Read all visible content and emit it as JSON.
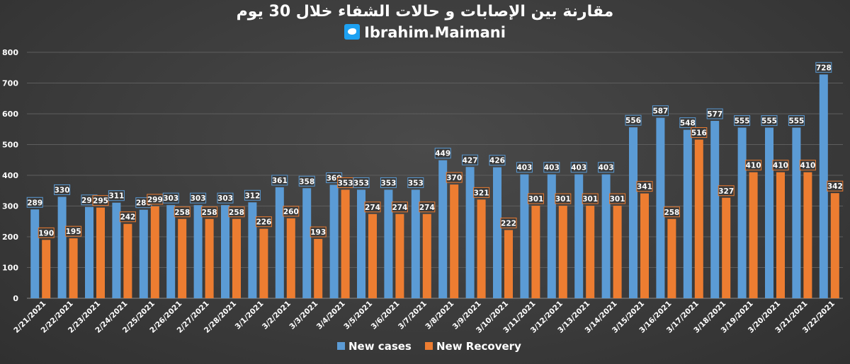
{
  "title": "مقارنة بين الإصابات و حالات الشفاء خلال 30 يوم",
  "handle": "Ibrahim.Maimani",
  "handle_icon": "twitter-bird-icon",
  "colors": {
    "cases": "#5b9bd5",
    "recovery": "#ed7d31",
    "background": "#3a3a3a",
    "text": "#ffffff",
    "grid": "#5e5e5e"
  },
  "chart_data": {
    "type": "bar",
    "categories": [
      "2/21/2021",
      "2/22/2021",
      "2/23/2021",
      "2/24/2021",
      "2/25/2021",
      "2/26/2021",
      "2/27/2021",
      "2/28/2021",
      "3/1/2021",
      "3/2/2021",
      "3/3/2021",
      "3/4/2021",
      "3/5/2021",
      "3/6/2021",
      "3/7/2021",
      "3/8/2021",
      "3/9/2021",
      "3/10/2021",
      "3/11/2021",
      "3/12/2021",
      "3/13/2021",
      "3/14/2021",
      "3/15/2021",
      "3/16/2021",
      "3/17/2021",
      "3/18/2021",
      "3/19/2021",
      "3/20/2021",
      "3/21/2021",
      "3/22/2021"
    ],
    "series": [
      {
        "name": "New cases",
        "values": [
          289,
          330,
          297,
          311,
          288,
          303,
          303,
          303,
          312,
          361,
          358,
          369,
          353,
          353,
          353,
          449,
          427,
          426,
          403,
          403,
          403,
          403,
          556,
          587,
          548,
          577,
          555,
          555,
          555,
          728
        ]
      },
      {
        "name": "New Recovery",
        "values": [
          190,
          195,
          295,
          242,
          299,
          258,
          258,
          258,
          226,
          260,
          193,
          353,
          274,
          274,
          274,
          370,
          321,
          222,
          301,
          301,
          301,
          301,
          341,
          258,
          516,
          327,
          410,
          410,
          410,
          342
        ]
      }
    ],
    "ylim": [
      0,
      800
    ],
    "yticks": [
      0,
      100,
      200,
      300,
      400,
      500,
      600,
      700,
      800
    ],
    "grid": true,
    "legend": "bottom"
  }
}
